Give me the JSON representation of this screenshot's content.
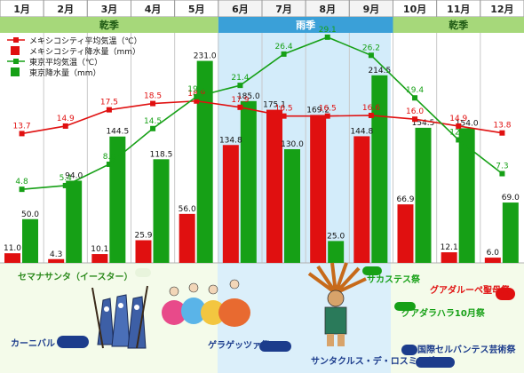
{
  "months": [
    "1月",
    "2月",
    "3月",
    "4月",
    "5月",
    "6月",
    "7月",
    "8月",
    "9月",
    "10月",
    "11月",
    "12月"
  ],
  "seasons": [
    {
      "label": "乾季",
      "start": 0,
      "end": 5,
      "type": "dry"
    },
    {
      "label": "雨季",
      "start": 5,
      "end": 9,
      "type": "wet"
    },
    {
      "label": "乾季",
      "start": 9,
      "end": 12,
      "type": "dry"
    }
  ],
  "legend": [
    {
      "label": "メキシコシティ平均気温（℃）",
      "color": "#e01010",
      "kind": "line"
    },
    {
      "label": "メキシコシティ降水量（mm）",
      "color": "#e01010",
      "kind": "bar"
    },
    {
      "label": "東京平均気温（℃）",
      "color": "#16a016",
      "kind": "line"
    },
    {
      "label": "東京降水量（mm）",
      "color": "#16a016",
      "kind": "bar"
    }
  ],
  "chart_data": {
    "type": "bar+line",
    "categories": [
      "1月",
      "2月",
      "3月",
      "4月",
      "5月",
      "6月",
      "7月",
      "8月",
      "9月",
      "10月",
      "11月",
      "12月"
    ],
    "series": [
      {
        "name": "メキシコシティ降水量（mm）",
        "kind": "bar",
        "color": "#e01010",
        "values": [
          11.0,
          4.3,
          10.1,
          25.9,
          56.0,
          134.8,
          175.1,
          169.2,
          144.8,
          66.9,
          12.1,
          6.0
        ]
      },
      {
        "name": "東京降水量（mm）",
        "kind": "bar",
        "color": "#16a016",
        "values": [
          50.0,
          94.0,
          144.5,
          118.5,
          231.0,
          185.0,
          130.0,
          25.0,
          214.5,
          154.5,
          154.0,
          69.0
        ]
      },
      {
        "name": "メキシコシティ平均気温（℃）",
        "kind": "line",
        "color": "#e01010",
        "values": [
          13.7,
          14.9,
          17.5,
          18.5,
          18.9,
          17.9,
          16.5,
          16.5,
          16.6,
          16.0,
          14.9,
          13.8
        ]
      },
      {
        "name": "東京平均気温（℃）",
        "kind": "line",
        "color": "#16a016",
        "values": [
          4.8,
          5.4,
          8.8,
          14.5,
          19.6,
          21.4,
          26.4,
          29.1,
          26.2,
          19.4,
          12.7,
          7.3
        ]
      }
    ],
    "value_labels": {
      "mex_rain": [
        "11.0",
        "4.3",
        "10.1",
        "25.9",
        "56.0",
        "134.8",
        "175.1",
        "169.2",
        "144.8",
        "66.9",
        "12.1",
        "6.0"
      ],
      "tokyo_rain": [
        "50.0",
        "94.0",
        "144.5",
        "118.5",
        "231.0",
        "185.0",
        "130.0",
        "25.0",
        "214.5",
        "154.5",
        "154.0",
        "69.0"
      ],
      "mex_temp": [
        "13.7",
        "14.9",
        "17.5",
        "18.5",
        "18.9",
        "17.9",
        "16.5",
        "16.5",
        "16.6",
        "16.0",
        "14.9",
        "13.8"
      ],
      "tokyo_temp": [
        "4.8",
        "5.4",
        "8.8",
        "14.5",
        "19.6",
        "21.4",
        "26.4",
        "29.1",
        "26.2",
        "19.4",
        "12.7",
        "7.3"
      ]
    },
    "grid": true,
    "legend_position": "top-left"
  },
  "festivals": [
    {
      "label": "セマナサンタ（イースター）",
      "color": "#e8f4dc",
      "text_color": "#2c8a1c",
      "month": "3月"
    },
    {
      "label": "カーニバル",
      "color": "#1c3c8c",
      "text_color": "#1c3c8c",
      "month": "2月"
    },
    {
      "label": "ゲラゲッツァ祭",
      "color": "#1c3c8c",
      "text_color": "#1c3c8c",
      "month": "7月"
    },
    {
      "label": "サンタクルス・デ・ロスミラグロス",
      "color": "#1c3c8c",
      "text_color": "#1c3c8c",
      "month": "9月"
    },
    {
      "label": "サカステス祭",
      "color": "#16a016",
      "text_color": "#16a016",
      "month": "9月"
    },
    {
      "label": "グアダルーペ聖母祭",
      "color": "#e01010",
      "text_color": "#e01010",
      "month": "12月"
    },
    {
      "label": "グアダラハラ10月祭",
      "color": "#16a016",
      "text_color": "#16a016",
      "month": "10月"
    },
    {
      "label": "国際セルバンテス芸術祭",
      "color": "#1c3c8c",
      "text_color": "#1c3c8c",
      "month": "10月"
    }
  ]
}
